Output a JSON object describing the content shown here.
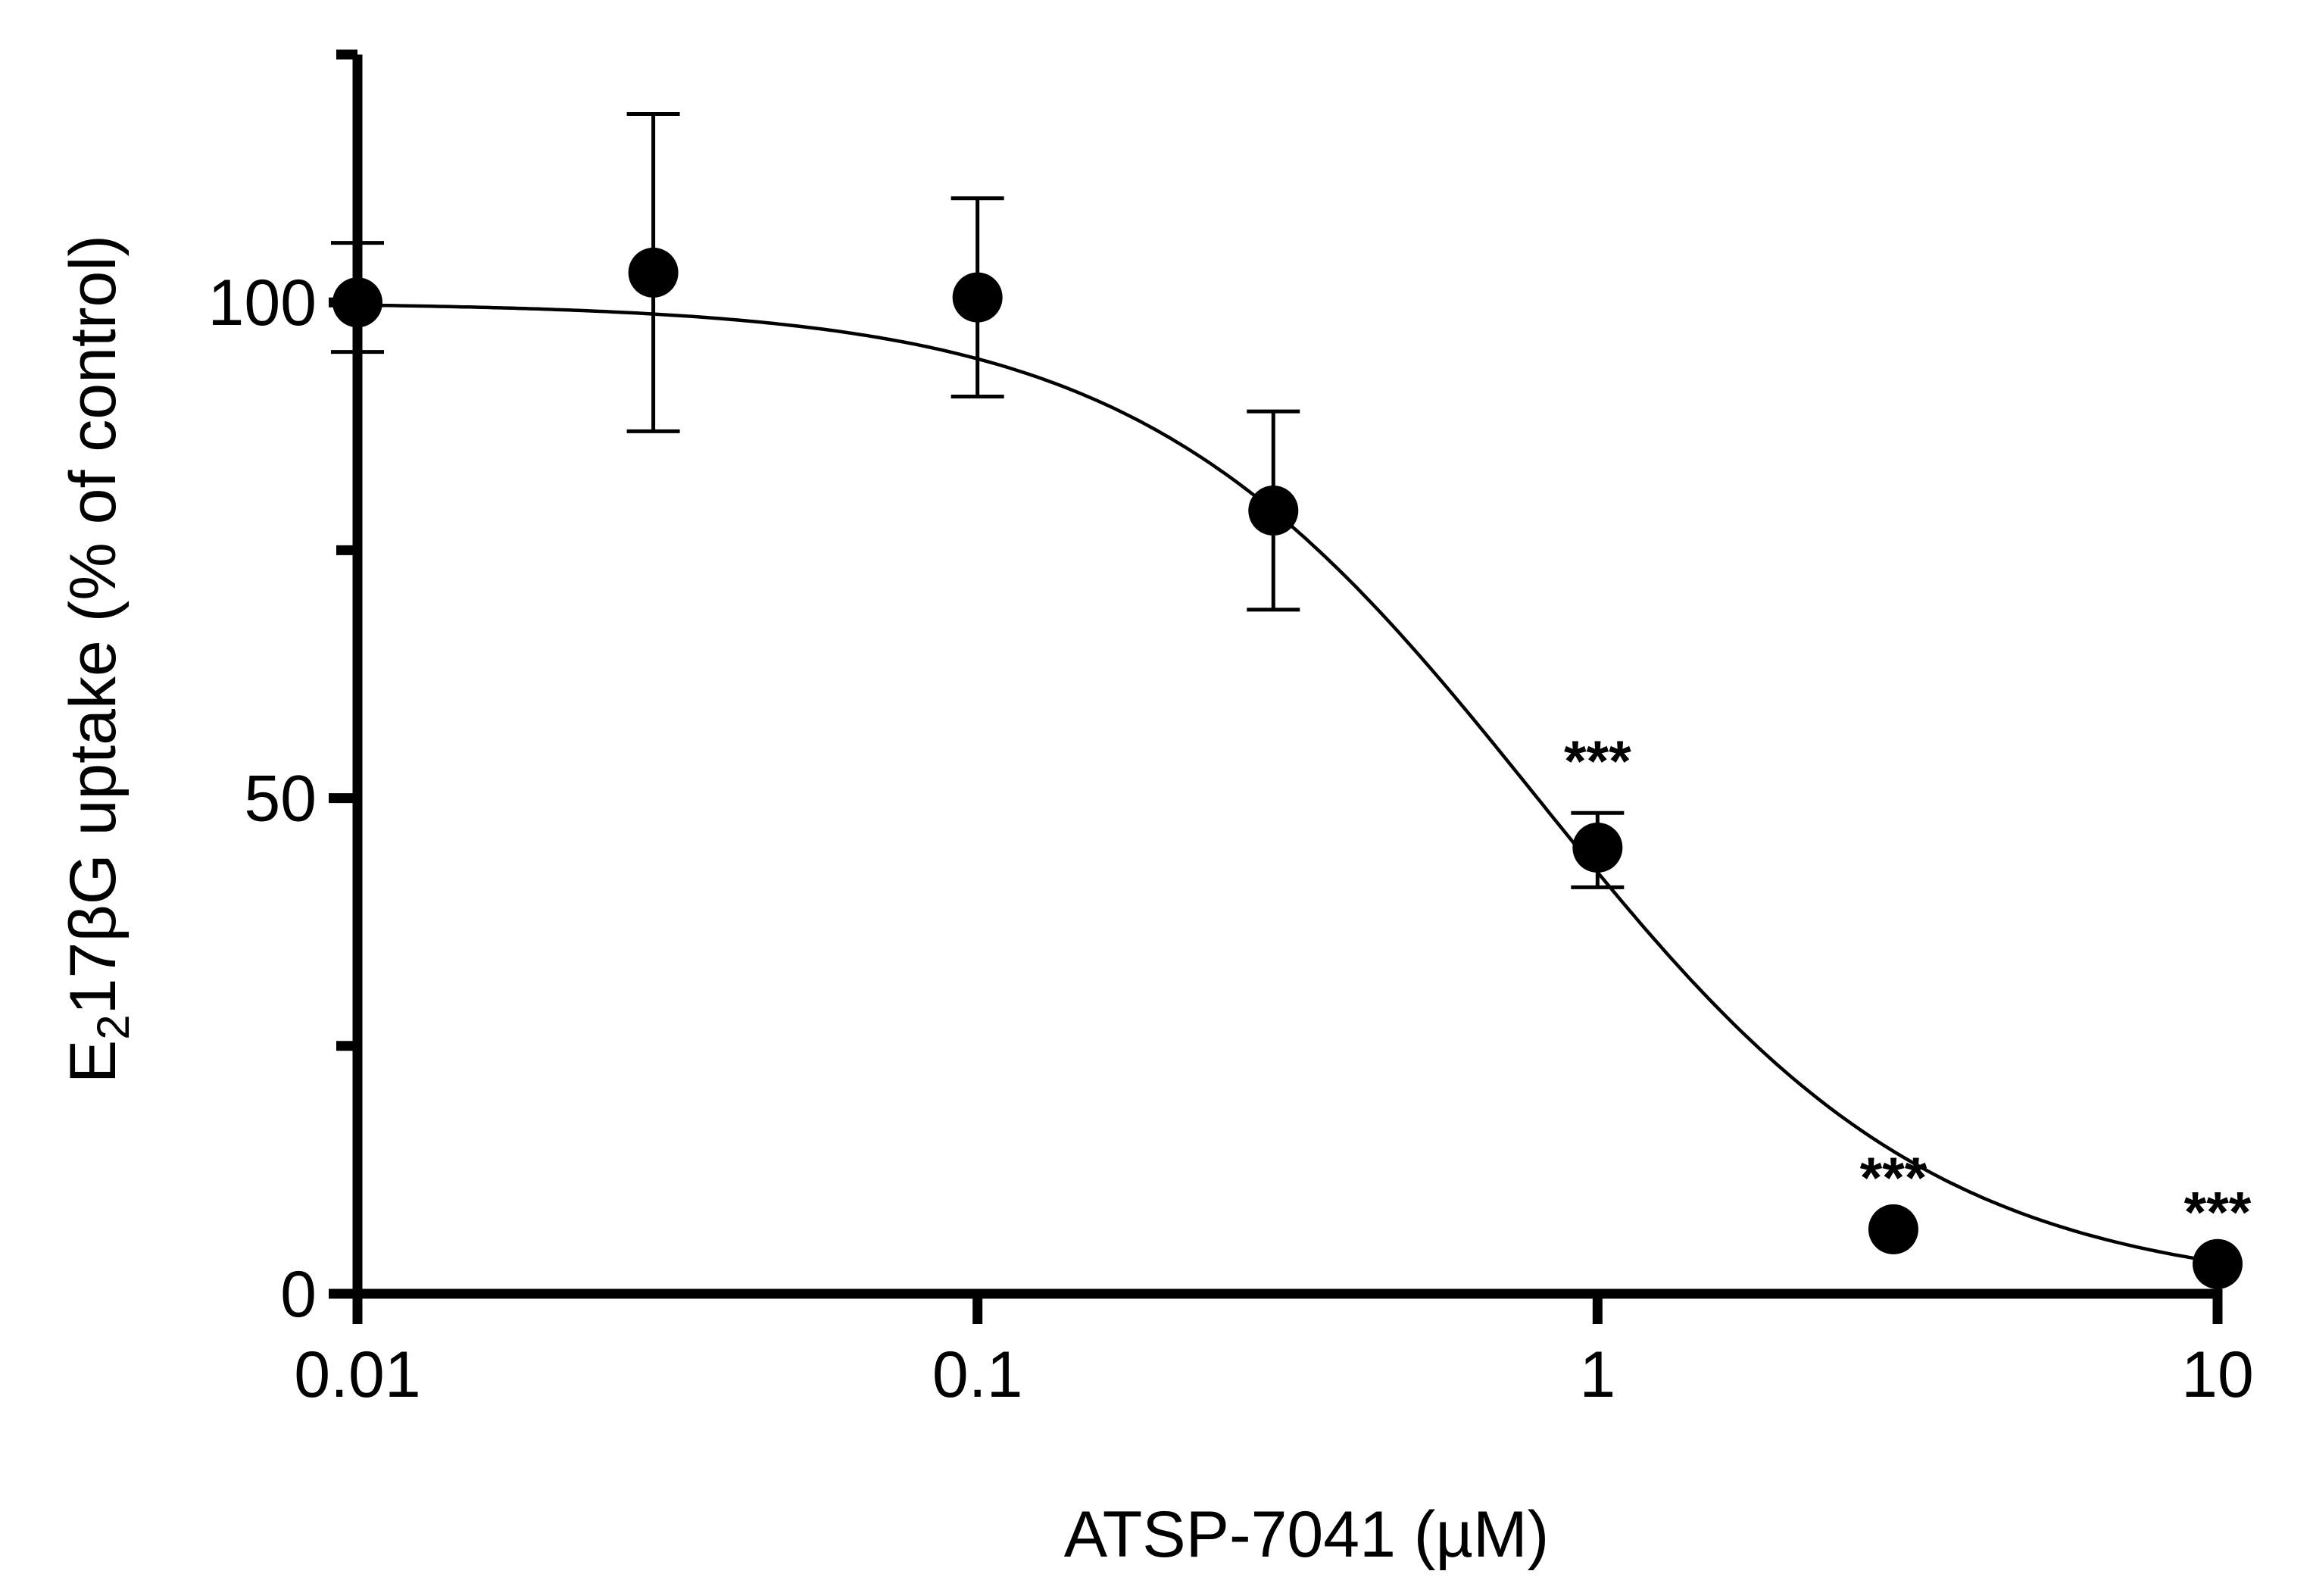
{
  "chart_data": {
    "type": "scatter",
    "title": "",
    "xlabel": "ATSP-7041 (µM)",
    "ylabel": {
      "prefix": "E",
      "subscript": "2",
      "rest": "17βG uptake (% of control)"
    },
    "x_scale": "log",
    "xlim": [
      0.01,
      10
    ],
    "ylim": [
      0,
      125
    ],
    "x_ticks": [
      {
        "value": 0.01,
        "label": "0.01"
      },
      {
        "value": 0.1,
        "label": "0.1"
      },
      {
        "value": 1,
        "label": "1"
      },
      {
        "value": 10,
        "label": "10"
      }
    ],
    "y_major_ticks": [
      {
        "value": 0,
        "label": "0"
      },
      {
        "value": 50,
        "label": "50"
      },
      {
        "value": 100,
        "label": "100"
      }
    ],
    "y_minor_ticks": [
      25,
      75,
      125
    ],
    "points": [
      {
        "x": 0.01,
        "y": 100,
        "err_low": 95,
        "err_high": 106,
        "sig": ""
      },
      {
        "x": 0.03,
        "y": 103,
        "err_low": 87,
        "err_high": 119,
        "sig": ""
      },
      {
        "x": 0.1,
        "y": 100.5,
        "err_low": 90.5,
        "err_high": 110.5,
        "sig": ""
      },
      {
        "x": 0.3,
        "y": 79,
        "err_low": 69,
        "err_high": 89,
        "sig": ""
      },
      {
        "x": 1,
        "y": 45,
        "err_low": 41,
        "err_high": 48.5,
        "sig": "***"
      },
      {
        "x": 3,
        "y": 6.5,
        "err_low": 6.5,
        "err_high": 6.5,
        "sig": "***"
      },
      {
        "x": 10,
        "y": 3,
        "err_low": 3,
        "err_high": 3,
        "sig": "***"
      }
    ],
    "fit": {
      "model": "four-parameter logistic",
      "top": 100,
      "bottom": 0,
      "ic50": 0.8,
      "hill": 1.35
    },
    "grid": false,
    "legend": "none"
  }
}
